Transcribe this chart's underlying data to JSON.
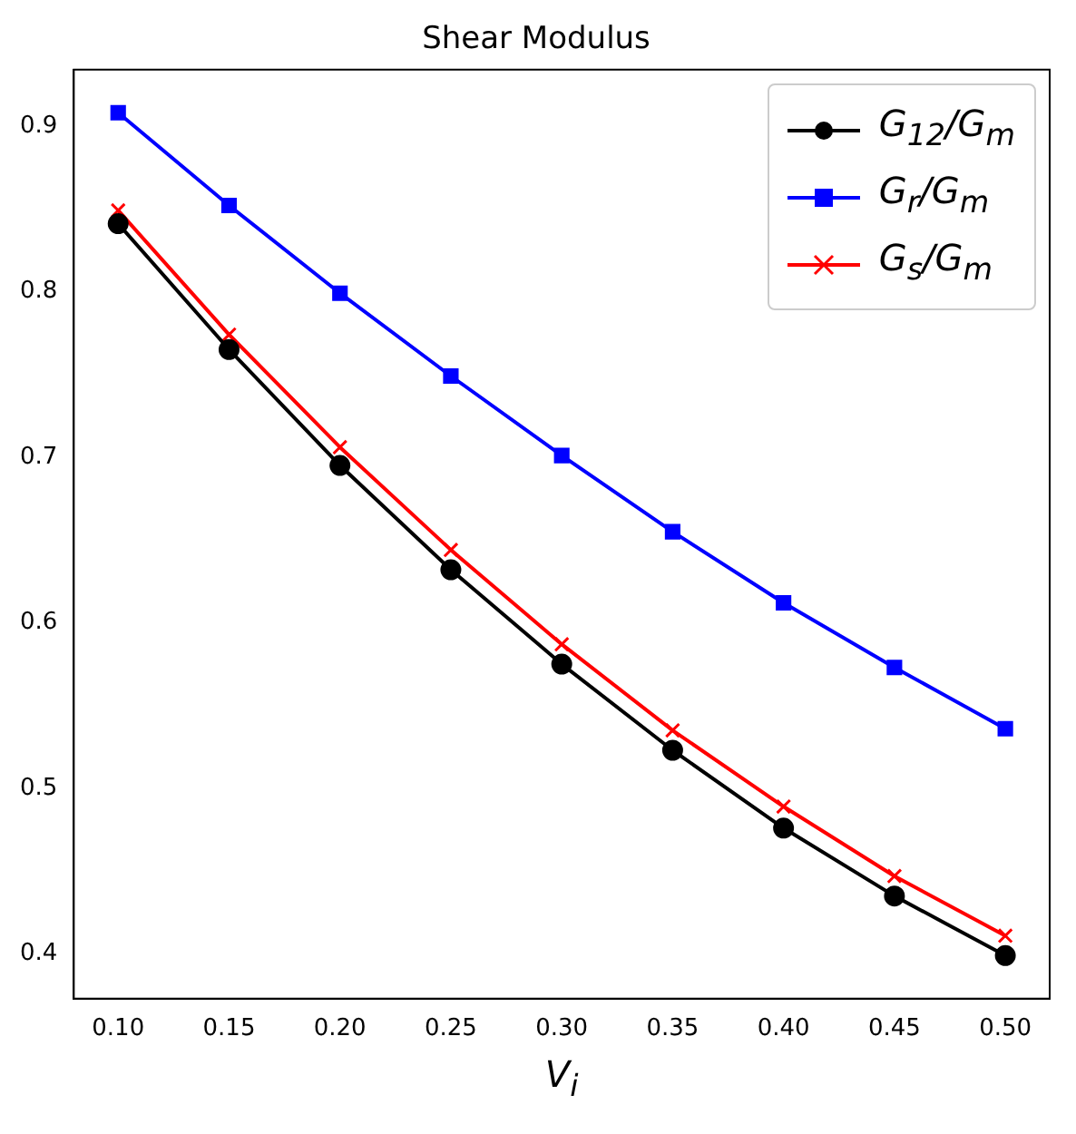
{
  "chart_data": {
    "type": "line",
    "title": "Shear Modulus",
    "xlabel": "V$_{i}$",
    "x": [
      0.1,
      0.15,
      0.2,
      0.25,
      0.3,
      0.35,
      0.4,
      0.45,
      0.5
    ],
    "series": [
      {
        "name": "G$_{12}$/G$_{m}$",
        "color": "#000000",
        "marker": "circle",
        "values": [
          0.841,
          0.765,
          0.695,
          0.632,
          0.575,
          0.523,
          0.476,
          0.435,
          0.399
        ]
      },
      {
        "name": "G$_{r}$/G$_{m}$",
        "color": "#0000ff",
        "marker": "square",
        "values": [
          0.908,
          0.852,
          0.799,
          0.749,
          0.701,
          0.655,
          0.612,
          0.573,
          0.536
        ]
      },
      {
        "name": "G$_{s}$/G$_{m}$",
        "color": "#ff0000",
        "marker": "cross",
        "values": [
          0.849,
          0.774,
          0.706,
          0.644,
          0.587,
          0.535,
          0.489,
          0.447,
          0.411
        ]
      }
    ],
    "xlim": [
      0.08,
      0.52
    ],
    "xticks": [
      {
        "value": 0.1,
        "label": "0.10"
      },
      {
        "value": 0.15,
        "label": "0.15"
      },
      {
        "value": 0.2,
        "label": "0.20"
      },
      {
        "value": 0.25,
        "label": "0.25"
      },
      {
        "value": 0.3,
        "label": "0.30"
      },
      {
        "value": 0.35,
        "label": "0.35"
      },
      {
        "value": 0.4,
        "label": "0.40"
      },
      {
        "value": 0.45,
        "label": "0.45"
      },
      {
        "value": 0.5,
        "label": "0.50"
      }
    ],
    "ylim": [
      0.373,
      0.934
    ],
    "yticks": [
      0.4,
      0.5,
      0.6,
      0.7,
      0.8,
      0.9
    ],
    "grid": false,
    "legend": "top right"
  }
}
